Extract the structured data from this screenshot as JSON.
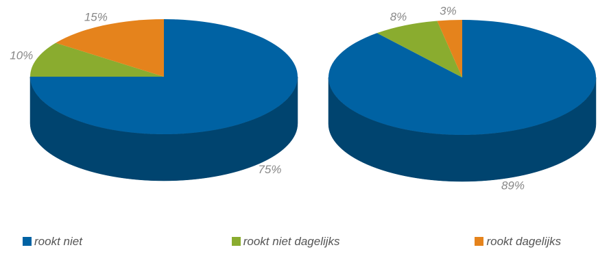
{
  "chart_data": [
    {
      "type": "pie",
      "values": [
        75,
        10,
        15
      ],
      "value_labels": [
        "75%",
        "10%",
        "15%"
      ],
      "colors": [
        "#0062a3",
        "#8aac2f",
        "#e5831c"
      ],
      "side_colors": [
        "#00446f",
        "#60791f",
        "#a65d10"
      ]
    },
    {
      "type": "pie",
      "values": [
        89,
        8,
        3
      ],
      "value_labels": [
        "89%",
        "8%",
        "3%"
      ],
      "colors": [
        "#0062a3",
        "#8aac2f",
        "#e5831c"
      ],
      "side_colors": [
        "#00446f",
        "#60791f",
        "#a65d10"
      ]
    }
  ],
  "legend": {
    "labels": [
      "rookt niet",
      "rookt niet dagelijks",
      "rookt dagelijks"
    ],
    "colors": [
      "#0062a3",
      "#8aac2f",
      "#e5831c"
    ]
  }
}
